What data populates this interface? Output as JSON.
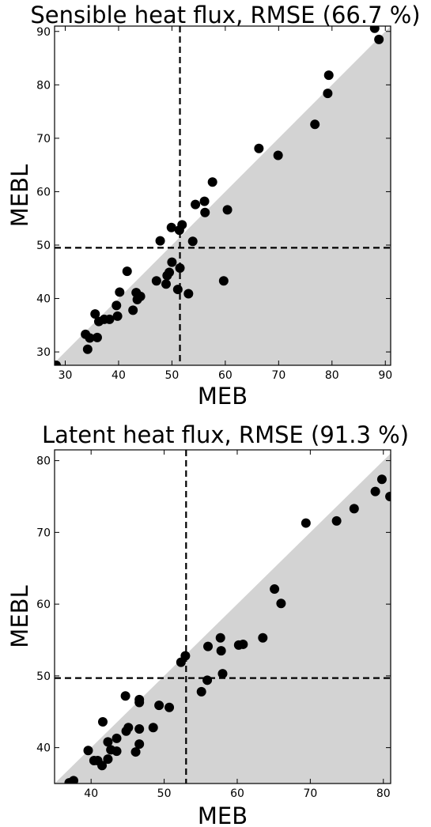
{
  "chart_data": [
    {
      "type": "scatter",
      "title": "Sensible heat flux, RMSE (66.7 %)",
      "xlabel": "MEB",
      "ylabel": "MEBL",
      "xlim": [
        28,
        91
      ],
      "ylim": [
        27.5,
        91
      ],
      "xticks": [
        "30",
        "40",
        "50",
        "60",
        "70",
        "80",
        "90"
      ],
      "yticks": [
        "30",
        "40",
        "50",
        "60",
        "70",
        "80",
        "90"
      ],
      "xtick_values": [
        30,
        40,
        50,
        60,
        70,
        80,
        90
      ],
      "ytick_values": [
        30,
        40,
        50,
        60,
        70,
        80,
        90
      ],
      "shaded_region": "below the 1:1 line",
      "vline_x": 51.5,
      "hline_y": 49.5,
      "grid": false,
      "points": [
        [
          28.3,
          27.5
        ],
        [
          33.8,
          33.3
        ],
        [
          34.2,
          30.5
        ],
        [
          34.6,
          32.6
        ],
        [
          35.6,
          37.1
        ],
        [
          36.0,
          32.7
        ],
        [
          36.3,
          35.7
        ],
        [
          37.3,
          36.1
        ],
        [
          38.3,
          36.1
        ],
        [
          39.6,
          38.7
        ],
        [
          39.8,
          36.7
        ],
        [
          40.2,
          41.2
        ],
        [
          41.6,
          45.1
        ],
        [
          42.7,
          37.8
        ],
        [
          43.3,
          41.1
        ],
        [
          43.5,
          39.8
        ],
        [
          44.1,
          40.4
        ],
        [
          47.1,
          43.3
        ],
        [
          47.8,
          50.8
        ],
        [
          48.9,
          42.7
        ],
        [
          49.1,
          44.3
        ],
        [
          49.5,
          44.9
        ],
        [
          49.9,
          53.3
        ],
        [
          50.0,
          46.8
        ],
        [
          51.1,
          41.7
        ],
        [
          51.4,
          52.8
        ],
        [
          51.5,
          45.7
        ],
        [
          51.9,
          53.8
        ],
        [
          53.1,
          40.9
        ],
        [
          53.9,
          50.7
        ],
        [
          54.4,
          57.6
        ],
        [
          56.1,
          58.2
        ],
        [
          56.2,
          56.1
        ],
        [
          57.6,
          61.8
        ],
        [
          59.7,
          43.3
        ],
        [
          60.4,
          56.6
        ],
        [
          66.3,
          68.1
        ],
        [
          69.9,
          66.8
        ],
        [
          76.8,
          72.6
        ],
        [
          79.2,
          78.4
        ],
        [
          79.4,
          81.8
        ],
        [
          88.0,
          90.6
        ],
        [
          88.8,
          88.5
        ]
      ]
    },
    {
      "type": "scatter",
      "title": "Latent heat flux, RMSE (91.3 %)",
      "xlabel": "MEB",
      "ylabel": "MEBL",
      "xlim": [
        35,
        81
      ],
      "ylim": [
        35,
        81.5
      ],
      "xticks": [
        "40",
        "50",
        "60",
        "70",
        "80"
      ],
      "yticks": [
        "40",
        "50",
        "60",
        "70",
        "80"
      ],
      "xtick_values": [
        40,
        50,
        60,
        70,
        80
      ],
      "ytick_values": [
        40,
        50,
        60,
        70,
        80
      ],
      "shaded_region": "below the 1:1 line",
      "vline_x": 53,
      "hline_y": 49.7,
      "grid": false,
      "points": [
        [
          37.0,
          35.1
        ],
        [
          37.6,
          35.4
        ],
        [
          39.6,
          39.6
        ],
        [
          40.4,
          38.2
        ],
        [
          40.9,
          38.2
        ],
        [
          41.5,
          37.5
        ],
        [
          41.6,
          43.6
        ],
        [
          42.3,
          40.8
        ],
        [
          42.3,
          38.4
        ],
        [
          42.7,
          39.7
        ],
        [
          43.5,
          41.3
        ],
        [
          43.5,
          39.5
        ],
        [
          44.7,
          47.2
        ],
        [
          44.8,
          42.3
        ],
        [
          45.1,
          42.8
        ],
        [
          46.1,
          39.4
        ],
        [
          46.6,
          46.7
        ],
        [
          46.6,
          46.3
        ],
        [
          46.6,
          40.5
        ],
        [
          46.6,
          42.6
        ],
        [
          48.5,
          42.8
        ],
        [
          49.3,
          45.9
        ],
        [
          50.7,
          45.6
        ],
        [
          52.3,
          51.9
        ],
        [
          52.9,
          52.8
        ],
        [
          55.1,
          47.8
        ],
        [
          55.9,
          49.4
        ],
        [
          56.0,
          54.1
        ],
        [
          57.7,
          55.3
        ],
        [
          57.8,
          53.5
        ],
        [
          58.0,
          50.3
        ],
        [
          60.2,
          54.3
        ],
        [
          60.8,
          54.4
        ],
        [
          63.5,
          55.3
        ],
        [
          65.1,
          62.1
        ],
        [
          66.0,
          60.1
        ],
        [
          69.4,
          71.3
        ],
        [
          73.6,
          71.6
        ],
        [
          76.0,
          73.3
        ],
        [
          78.9,
          75.7
        ],
        [
          79.8,
          77.4
        ],
        [
          80.9,
          75.0
        ]
      ]
    }
  ]
}
